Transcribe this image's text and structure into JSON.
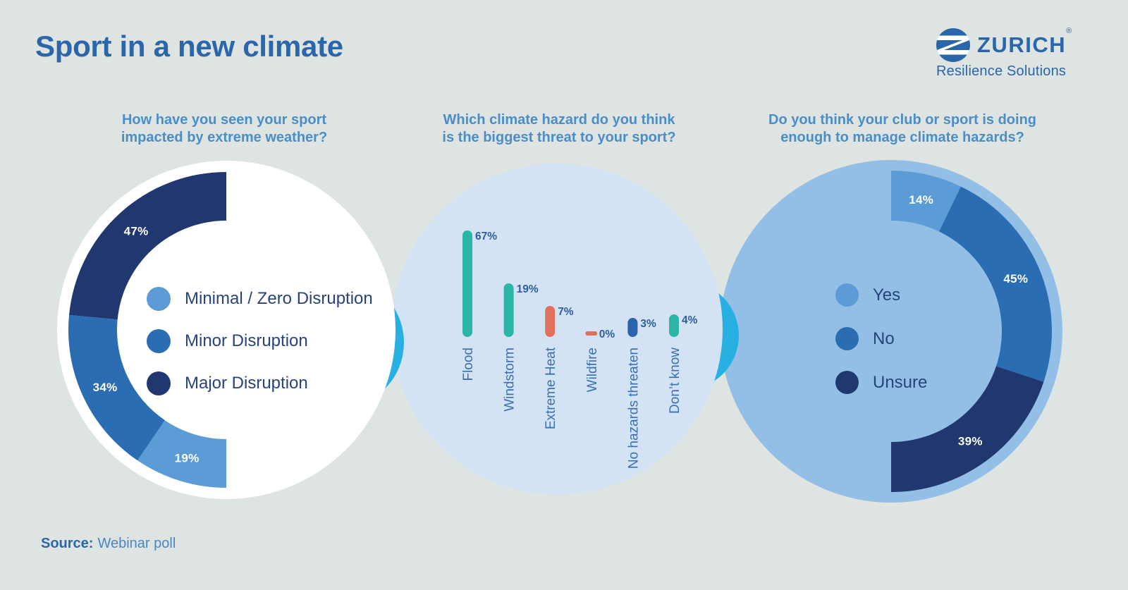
{
  "page": {
    "title": "Sport in a new climate"
  },
  "brand": {
    "name": "ZURICH",
    "registered": "®",
    "subtitle": "Resilience Solutions",
    "logo_letter": "Z",
    "color": "#2b66ab"
  },
  "source": {
    "label": "Source:",
    "text": "Webinar poll"
  },
  "colors": {
    "background": "#dee4e2",
    "heading": "#2b66ab",
    "question": "#4a8ec9",
    "legend_text": "#27437c",
    "connector_cyan": "#29b0e3",
    "navy": "#20386f",
    "medium_blue": "#2b6db3",
    "light_blue": "#5b9bd6",
    "teal": "#2bb5a7",
    "salmon": "#e0715c",
    "bar_value_text": "#2b5f9f",
    "bar_category_text": "#3b6fb4",
    "percent_label_text": "#ffffff"
  },
  "chart_data": [
    {
      "type": "donut",
      "half": "left",
      "title": "How have you seen your sport impacted by extreme weather?",
      "title_lines": [
        "How have you seen your sport",
        "impacted by extreme weather?"
      ],
      "circle_fill": "#ffffff",
      "segments_from_top": [
        {
          "label": "Major Disruption",
          "value_pct": 47,
          "color": "#20386f"
        },
        {
          "label": "Minor Disruption",
          "value_pct": 34,
          "color": "#2b6db3"
        },
        {
          "label": "Minimal / Zero Disruption",
          "value_pct": 19,
          "color": "#5b9bd6"
        }
      ],
      "legend": [
        {
          "label": "Minimal / Zero Disruption",
          "color": "#5b9bd6"
        },
        {
          "label": "Minor Disruption",
          "color": "#2b6db3"
        },
        {
          "label": "Major Disruption",
          "color": "#20386f"
        }
      ],
      "legend_position": "inside-donut-hole"
    },
    {
      "type": "bar",
      "title": "Which climate hazard do you think is the biggest threat to your sport?",
      "title_lines": [
        "Which climate hazard do you think",
        "is the biggest threat to your sport?"
      ],
      "circle_fill": "#d3e3f4",
      "categories": [
        "Flood",
        "Windstorm",
        "Extreme Heat",
        "Wildfire",
        "No hazards threaten",
        "Don’t know"
      ],
      "values_pct": [
        67,
        19,
        7,
        0,
        3,
        4
      ],
      "bar_colors": [
        "#2bb5a7",
        "#2bb5a7",
        "#e0715c",
        "#e0715c",
        "#2a63ae",
        "#2bb5a7"
      ],
      "value_suffix": "%",
      "grid": false,
      "category_labels_rotated_90": true
    },
    {
      "type": "donut",
      "half": "right",
      "title": "Do you think your club or sport is doing enough to manage climate hazards?",
      "title_lines": [
        "Do you think your club or sport is doing",
        "enough to manage climate hazards?"
      ],
      "circle_fill": "#93bfe6",
      "segments_from_top": [
        {
          "label": "Yes",
          "value_pct": 14,
          "color": "#5b9bd6"
        },
        {
          "label": "No",
          "value_pct": 45,
          "color": "#2b6db3"
        },
        {
          "label": "Unsure",
          "value_pct": 39,
          "color": "#20386f"
        }
      ],
      "legend": [
        {
          "label": "Yes",
          "color": "#5b9bd6"
        },
        {
          "label": "No",
          "color": "#2b6db3"
        },
        {
          "label": "Unsure",
          "color": "#20386f"
        }
      ],
      "legend_position": "inside-donut-hole"
    }
  ]
}
